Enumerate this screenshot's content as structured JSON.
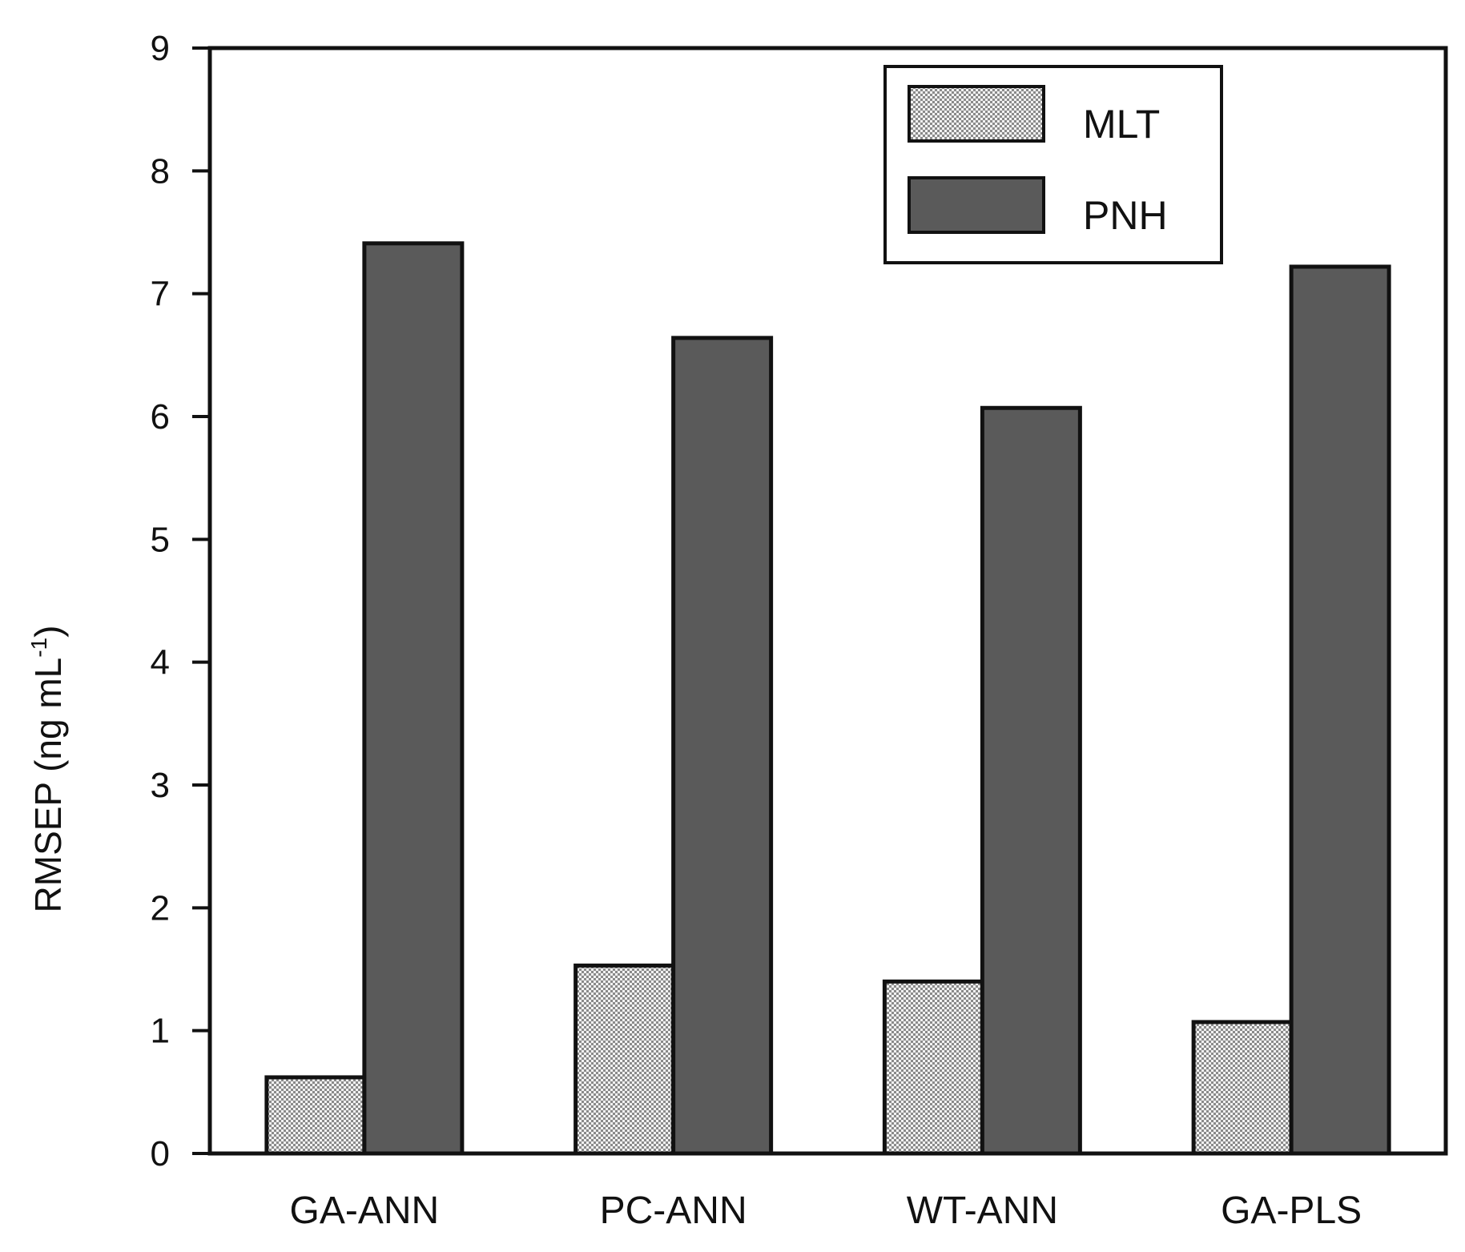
{
  "chart_data": {
    "type": "bar",
    "categories": [
      "GA-ANN",
      "PC-ANN",
      "WT-ANN",
      "GA-PLS"
    ],
    "series": [
      {
        "name": "MLT",
        "values": [
          0.62,
          1.53,
          1.4,
          1.07
        ],
        "pattern": "checker",
        "color": "#d9d9d9"
      },
      {
        "name": "PNH",
        "values": [
          7.41,
          6.64,
          6.07,
          7.22
        ],
        "pattern": "solid",
        "color": "#5a5a5a"
      }
    ],
    "ylabel": "RMSEP (ng mL",
    "ylabel_superscript": "-1",
    "ylabel_suffix": ")",
    "ylim": [
      0,
      9
    ],
    "yticks": [
      "0",
      "1",
      "2",
      "3",
      "4",
      "5",
      "6",
      "7",
      "8",
      "9"
    ],
    "legend_position": "top-right",
    "grid": false
  }
}
